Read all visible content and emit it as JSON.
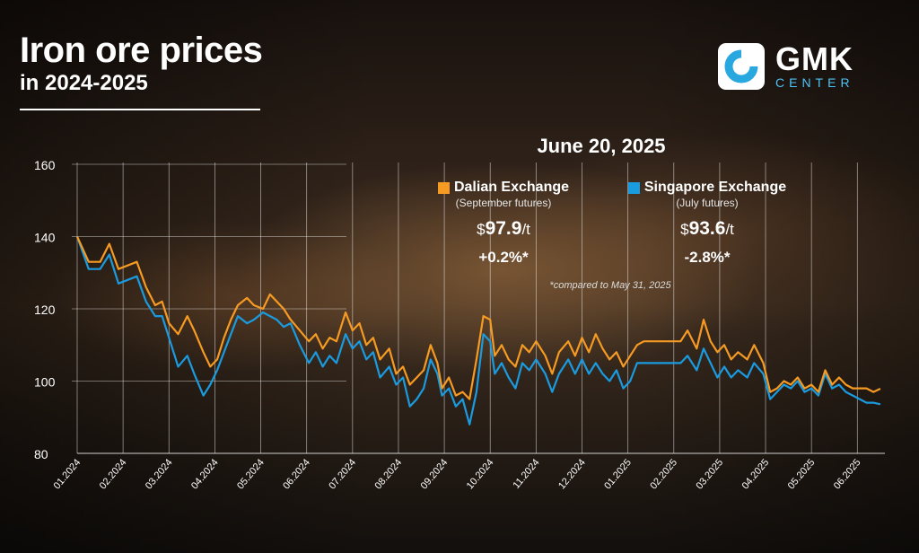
{
  "header": {
    "title": "Iron ore prices",
    "subtitle": "in 2024-2025"
  },
  "logo": {
    "name": "GMK",
    "tagline": "CENTER",
    "accent": "#29a8e0"
  },
  "info": {
    "date": "June 20, 2025",
    "footnote": "*compared to May 31, 2025",
    "dalian": {
      "name": "Dalian Exchange",
      "note": "(September futures)",
      "price_prefix": "$",
      "price": "97.9",
      "unit": "/t",
      "change": "+0.2%*",
      "color": "#f59a23"
    },
    "singapore": {
      "name": "Singapore Exchange",
      "note": "(July futures)",
      "price_prefix": "$",
      "price": "93.6",
      "unit": "/t",
      "change": "-2.8%*",
      "color": "#1a9be0"
    }
  },
  "chart_data": {
    "type": "line",
    "ylim": [
      80,
      160
    ],
    "yticks": [
      80,
      100,
      120,
      140,
      160
    ],
    "xlim": [
      0,
      17.6
    ],
    "xticks": [
      "01.2024",
      "02.2024",
      "03.2024",
      "04.2024",
      "05.2024",
      "06.2024",
      "07.2024",
      "08.2024",
      "09.2024",
      "10.2024",
      "11.2024",
      "12.2024",
      "01.2025",
      "02.2025",
      "03.2025",
      "04.2025",
      "05.2025",
      "06.2025"
    ],
    "grid": "vertical",
    "series": [
      {
        "name": "Dalian Exchange",
        "color": "#f59a23",
        "points": [
          [
            0.0,
            140
          ],
          [
            0.25,
            133
          ],
          [
            0.5,
            133
          ],
          [
            0.7,
            138
          ],
          [
            0.9,
            131
          ],
          [
            1.1,
            132
          ],
          [
            1.3,
            133
          ],
          [
            1.5,
            126
          ],
          [
            1.7,
            121
          ],
          [
            1.85,
            122
          ],
          [
            2.0,
            116
          ],
          [
            2.2,
            113
          ],
          [
            2.4,
            118
          ],
          [
            2.55,
            114
          ],
          [
            2.75,
            108
          ],
          [
            2.9,
            104
          ],
          [
            3.05,
            106
          ],
          [
            3.2,
            112
          ],
          [
            3.35,
            117
          ],
          [
            3.5,
            121
          ],
          [
            3.7,
            123
          ],
          [
            3.85,
            121
          ],
          [
            4.05,
            120
          ],
          [
            4.2,
            124
          ],
          [
            4.35,
            122
          ],
          [
            4.5,
            120
          ],
          [
            4.65,
            117
          ],
          [
            4.85,
            114
          ],
          [
            5.05,
            111
          ],
          [
            5.2,
            113
          ],
          [
            5.35,
            109
          ],
          [
            5.5,
            112
          ],
          [
            5.65,
            111
          ],
          [
            5.85,
            119
          ],
          [
            6.0,
            114
          ],
          [
            6.15,
            116
          ],
          [
            6.3,
            110
          ],
          [
            6.45,
            112
          ],
          [
            6.6,
            106
          ],
          [
            6.8,
            109
          ],
          [
            6.95,
            102
          ],
          [
            7.1,
            104
          ],
          [
            7.25,
            99
          ],
          [
            7.4,
            101
          ],
          [
            7.55,
            103
          ],
          [
            7.7,
            110
          ],
          [
            7.85,
            105
          ],
          [
            7.95,
            98
          ],
          [
            8.1,
            101
          ],
          [
            8.25,
            96
          ],
          [
            8.4,
            97
          ],
          [
            8.55,
            95
          ],
          [
            8.7,
            106
          ],
          [
            8.85,
            118
          ],
          [
            9.0,
            117
          ],
          [
            9.1,
            107
          ],
          [
            9.25,
            110
          ],
          [
            9.4,
            106
          ],
          [
            9.55,
            104
          ],
          [
            9.7,
            110
          ],
          [
            9.85,
            108
          ],
          [
            10.0,
            111
          ],
          [
            10.2,
            107
          ],
          [
            10.35,
            102
          ],
          [
            10.5,
            108
          ],
          [
            10.7,
            111
          ],
          [
            10.85,
            107
          ],
          [
            11.0,
            112
          ],
          [
            11.15,
            108
          ],
          [
            11.3,
            113
          ],
          [
            11.45,
            109
          ],
          [
            11.6,
            106
          ],
          [
            11.75,
            108
          ],
          [
            11.9,
            104
          ],
          [
            12.05,
            107
          ],
          [
            12.2,
            110
          ],
          [
            12.35,
            111
          ],
          [
            12.55,
            111
          ],
          [
            12.75,
            111
          ],
          [
            12.95,
            111
          ],
          [
            13.15,
            111
          ],
          [
            13.3,
            114
          ],
          [
            13.5,
            109
          ],
          [
            13.65,
            117
          ],
          [
            13.8,
            111
          ],
          [
            13.95,
            108
          ],
          [
            14.1,
            110
          ],
          [
            14.25,
            106
          ],
          [
            14.4,
            108
          ],
          [
            14.6,
            106
          ],
          [
            14.75,
            110
          ],
          [
            14.95,
            105
          ],
          [
            15.1,
            97
          ],
          [
            15.25,
            98
          ],
          [
            15.4,
            100
          ],
          [
            15.55,
            99
          ],
          [
            15.7,
            101
          ],
          [
            15.85,
            98
          ],
          [
            16.0,
            99
          ],
          [
            16.15,
            97
          ],
          [
            16.3,
            103
          ],
          [
            16.45,
            99
          ],
          [
            16.6,
            101
          ],
          [
            16.75,
            99
          ],
          [
            16.9,
            98
          ],
          [
            17.05,
            98
          ],
          [
            17.2,
            98
          ],
          [
            17.35,
            97
          ],
          [
            17.5,
            97.9
          ]
        ]
      },
      {
        "name": "Singapore Exchange",
        "color": "#1a9be0",
        "points": [
          [
            0.0,
            140
          ],
          [
            0.25,
            131
          ],
          [
            0.5,
            131
          ],
          [
            0.7,
            135
          ],
          [
            0.9,
            127
          ],
          [
            1.1,
            128
          ],
          [
            1.3,
            129
          ],
          [
            1.5,
            122
          ],
          [
            1.7,
            118
          ],
          [
            1.85,
            118
          ],
          [
            2.0,
            112
          ],
          [
            2.2,
            104
          ],
          [
            2.4,
            107
          ],
          [
            2.55,
            102
          ],
          [
            2.75,
            96
          ],
          [
            2.9,
            99
          ],
          [
            3.05,
            103
          ],
          [
            3.2,
            108
          ],
          [
            3.35,
            113
          ],
          [
            3.5,
            118
          ],
          [
            3.7,
            116
          ],
          [
            3.85,
            117
          ],
          [
            4.05,
            119
          ],
          [
            4.2,
            118
          ],
          [
            4.35,
            117
          ],
          [
            4.5,
            115
          ],
          [
            4.65,
            116
          ],
          [
            4.85,
            110
          ],
          [
            5.05,
            105
          ],
          [
            5.2,
            108
          ],
          [
            5.35,
            104
          ],
          [
            5.5,
            107
          ],
          [
            5.65,
            105
          ],
          [
            5.85,
            113
          ],
          [
            6.0,
            109
          ],
          [
            6.15,
            111
          ],
          [
            6.3,
            106
          ],
          [
            6.45,
            108
          ],
          [
            6.6,
            101
          ],
          [
            6.8,
            104
          ],
          [
            6.95,
            99
          ],
          [
            7.1,
            101
          ],
          [
            7.25,
            93
          ],
          [
            7.4,
            95
          ],
          [
            7.55,
            98
          ],
          [
            7.7,
            106
          ],
          [
            7.85,
            102
          ],
          [
            7.95,
            96
          ],
          [
            8.1,
            98
          ],
          [
            8.25,
            93
          ],
          [
            8.4,
            95
          ],
          [
            8.55,
            88
          ],
          [
            8.7,
            97
          ],
          [
            8.85,
            113
          ],
          [
            9.0,
            111
          ],
          [
            9.1,
            102
          ],
          [
            9.25,
            105
          ],
          [
            9.4,
            101
          ],
          [
            9.55,
            98
          ],
          [
            9.7,
            105
          ],
          [
            9.85,
            103
          ],
          [
            10.0,
            106
          ],
          [
            10.2,
            102
          ],
          [
            10.35,
            97
          ],
          [
            10.5,
            102
          ],
          [
            10.7,
            106
          ],
          [
            10.85,
            102
          ],
          [
            11.0,
            106
          ],
          [
            11.15,
            102
          ],
          [
            11.3,
            105
          ],
          [
            11.45,
            102
          ],
          [
            11.6,
            100
          ],
          [
            11.75,
            103
          ],
          [
            11.9,
            98
          ],
          [
            12.05,
            100
          ],
          [
            12.2,
            105
          ],
          [
            12.35,
            105
          ],
          [
            12.55,
            105
          ],
          [
            12.75,
            105
          ],
          [
            12.95,
            105
          ],
          [
            13.15,
            105
          ],
          [
            13.3,
            107
          ],
          [
            13.5,
            103
          ],
          [
            13.65,
            109
          ],
          [
            13.8,
            105
          ],
          [
            13.95,
            101
          ],
          [
            14.1,
            104
          ],
          [
            14.25,
            101
          ],
          [
            14.4,
            103
          ],
          [
            14.6,
            101
          ],
          [
            14.75,
            105
          ],
          [
            14.95,
            102
          ],
          [
            15.1,
            95
          ],
          [
            15.25,
            97
          ],
          [
            15.4,
            99
          ],
          [
            15.55,
            98
          ],
          [
            15.7,
            100
          ],
          [
            15.85,
            97
          ],
          [
            16.0,
            98
          ],
          [
            16.15,
            96
          ],
          [
            16.3,
            102
          ],
          [
            16.45,
            98
          ],
          [
            16.6,
            99
          ],
          [
            16.75,
            97
          ],
          [
            16.9,
            96
          ],
          [
            17.05,
            95
          ],
          [
            17.2,
            94
          ],
          [
            17.35,
            94
          ],
          [
            17.5,
            93.6
          ]
        ]
      }
    ]
  }
}
